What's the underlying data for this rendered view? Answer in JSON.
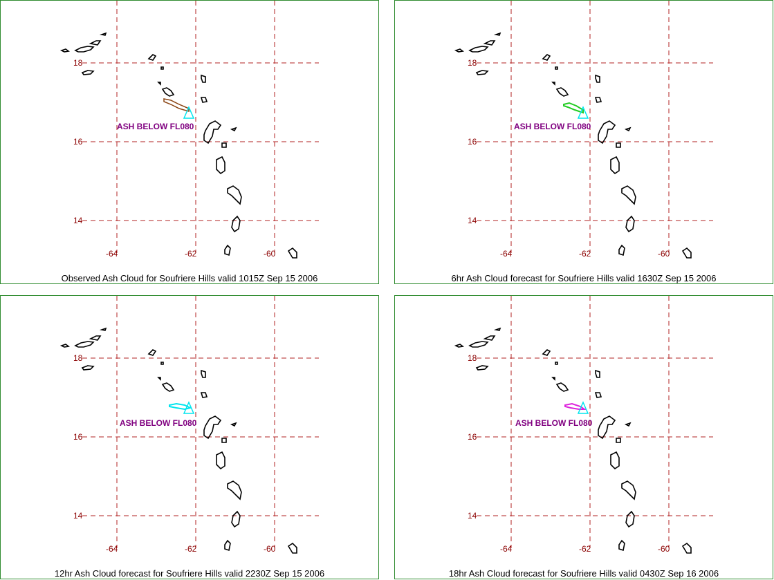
{
  "panels": [
    {
      "caption": "Observed Ash Cloud for Soufriere  Hills valid 1015Z Sep 15 2006",
      "ash_label": "ASH BELOW FL080",
      "plume_color": "#8b4513",
      "plume_direction": "northwest"
    },
    {
      "caption": "6hr Ash Cloud forecast for Soufriere  Hills valid 1630Z Sep 15 2006",
      "ash_label": "ASH BELOW FL080",
      "plume_color": "#22cc22",
      "plume_direction": "northwest"
    },
    {
      "caption": "12hr Ash Cloud forecast for Soufriere  Hills valid 2230Z Sep 15 2006",
      "ash_label": "ASH BELOW FL080",
      "plume_color": "#00e5ee",
      "plume_direction": "west-northwest"
    },
    {
      "caption": "18hr Ash Cloud forecast for Soufriere  Hills valid 0430Z Sep 16 2006",
      "ash_label": "ASH BELOW FL080",
      "plume_color": "#dd22dd",
      "plume_direction": "west-northwest"
    }
  ],
  "lat_ticks": [
    "18",
    "16",
    "14"
  ],
  "lon_ticks": [
    "-64",
    "-62",
    "-60"
  ],
  "colors": {
    "frame": "#2e8b2e",
    "grid": "#b22222",
    "tick_text": "#8b0000",
    "ash_label": "#800080",
    "volcano_marker": "#00e5ee"
  }
}
